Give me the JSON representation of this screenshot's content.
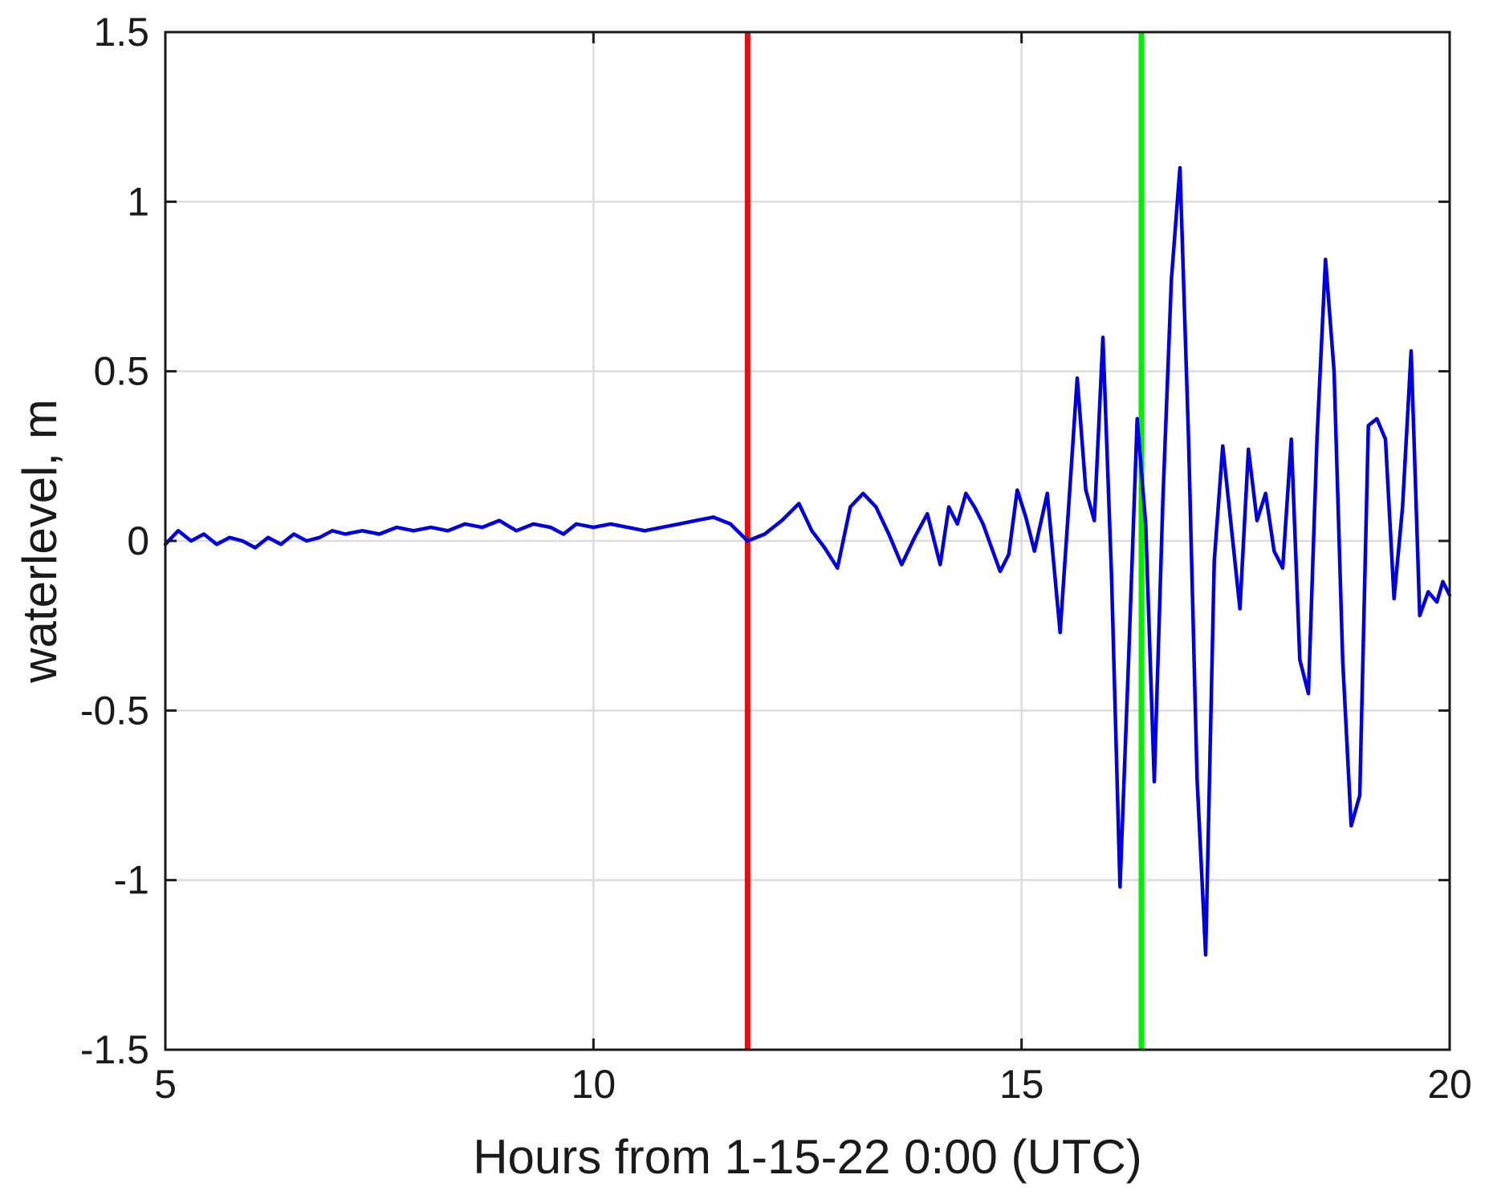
{
  "chart_data": {
    "type": "line",
    "title": "",
    "xlabel": "Hours from 1-15-22 0:00 (UTC)",
    "ylabel": "waterlevel, m",
    "xlim": [
      5,
      20
    ],
    "ylim": [
      -1.5,
      1.5
    ],
    "xticks": [
      5,
      10,
      15,
      20
    ],
    "xtick_labels": [
      "5",
      "10",
      "15",
      "20"
    ],
    "yticks": [
      -1.5,
      -1,
      -0.5,
      0,
      0.5,
      1,
      1.5
    ],
    "ytick_labels": [
      "-1.5",
      "-1",
      "-0.5",
      "0",
      "0.5",
      "1",
      "1.5"
    ],
    "grid": true,
    "legend": "none",
    "series": [
      {
        "color": "#0000dd",
        "x": [
          5.0,
          5.15,
          5.3,
          5.45,
          5.6,
          5.75,
          5.9,
          6.05,
          6.2,
          6.35,
          6.5,
          6.65,
          6.8,
          6.95,
          7.1,
          7.3,
          7.5,
          7.7,
          7.9,
          8.1,
          8.3,
          8.5,
          8.7,
          8.9,
          9.1,
          9.3,
          9.5,
          9.65,
          9.8,
          10.0,
          10.2,
          10.4,
          10.6,
          10.8,
          11.0,
          11.2,
          11.4,
          11.6,
          11.8,
          12.0,
          12.2,
          12.4,
          12.55,
          12.7,
          12.85,
          13.0,
          13.15,
          13.3,
          13.45,
          13.6,
          13.75,
          13.9,
          14.05,
          14.15,
          14.25,
          14.35,
          14.45,
          14.55,
          14.65,
          14.75,
          14.85,
          14.95,
          15.05,
          15.15,
          15.3,
          15.45,
          15.55,
          15.65,
          15.75,
          15.85,
          15.95,
          16.05,
          16.15,
          16.25,
          16.35,
          16.45,
          16.55,
          16.65,
          16.75,
          16.85,
          16.95,
          17.05,
          17.15,
          17.25,
          17.35,
          17.45,
          17.55,
          17.65,
          17.75,
          17.85,
          17.95,
          18.05,
          18.15,
          18.25,
          18.35,
          18.45,
          18.55,
          18.65,
          18.75,
          18.85,
          18.95,
          19.05,
          19.15,
          19.25,
          19.35,
          19.45,
          19.55,
          19.65,
          19.75,
          19.85,
          19.92,
          20.0
        ],
        "y": [
          -0.01,
          0.03,
          0.0,
          0.02,
          -0.01,
          0.01,
          0.0,
          -0.02,
          0.01,
          -0.01,
          0.02,
          0.0,
          0.01,
          0.03,
          0.02,
          0.03,
          0.02,
          0.04,
          0.03,
          0.04,
          0.03,
          0.05,
          0.04,
          0.06,
          0.03,
          0.05,
          0.04,
          0.02,
          0.05,
          0.04,
          0.05,
          0.04,
          0.03,
          0.04,
          0.05,
          0.06,
          0.07,
          0.05,
          0.0,
          0.02,
          0.06,
          0.11,
          0.03,
          -0.02,
          -0.08,
          0.1,
          0.14,
          0.1,
          0.02,
          -0.07,
          0.01,
          0.08,
          -0.07,
          0.1,
          0.05,
          0.14,
          0.1,
          0.05,
          -0.02,
          -0.09,
          -0.04,
          0.15,
          0.07,
          -0.03,
          0.14,
          -0.27,
          0.1,
          0.48,
          0.15,
          0.06,
          0.6,
          -0.1,
          -1.02,
          -0.35,
          0.36,
          0.05,
          -0.71,
          0.12,
          0.77,
          1.1,
          0.3,
          -0.7,
          -1.22,
          -0.06,
          0.28,
          0.04,
          -0.2,
          0.27,
          0.06,
          0.14,
          -0.03,
          -0.08,
          0.3,
          -0.35,
          -0.45,
          0.3,
          0.83,
          0.5,
          -0.35,
          -0.84,
          -0.75,
          0.34,
          0.36,
          0.3,
          -0.17,
          0.1,
          0.56,
          -0.22,
          -0.15,
          -0.18,
          -0.12,
          -0.16
        ]
      }
    ],
    "vertical_lines": [
      {
        "x": 11.8,
        "color": "#dd1111"
      },
      {
        "x": 16.4,
        "color": "#00ee00"
      }
    ]
  }
}
